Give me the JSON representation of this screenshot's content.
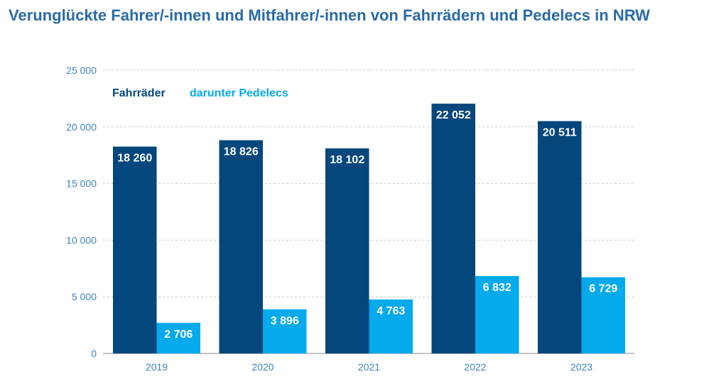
{
  "chart_data": {
    "type": "bar",
    "title": "Verunglückte Fahrer/-innen und Mitfahrer/-innen von Fahrrädern und Pedelecs in NRW",
    "categories": [
      "2019",
      "2020",
      "2021",
      "2022",
      "2023"
    ],
    "series": [
      {
        "name": "Fahrräder",
        "values": [
          18260,
          18826,
          18102,
          22052,
          20511
        ],
        "labels": [
          "18 260",
          "18 826",
          "18 102",
          "22 052",
          "20 511"
        ],
        "color": "#03477c"
      },
      {
        "name": "darunter Pedelecs",
        "values": [
          2706,
          3896,
          4763,
          6832,
          6729
        ],
        "labels": [
          "2 706",
          "3 896",
          "4 763",
          "6 832",
          "6 729"
        ],
        "color": "#04aaeb"
      }
    ],
    "yticks": [
      "0",
      "5 000",
      "10 000",
      "15 000",
      "20 000",
      "25 000"
    ],
    "ylim": [
      0,
      25000
    ],
    "grid": true,
    "legend_position": "top-left",
    "xlabel": "",
    "ylabel": ""
  }
}
